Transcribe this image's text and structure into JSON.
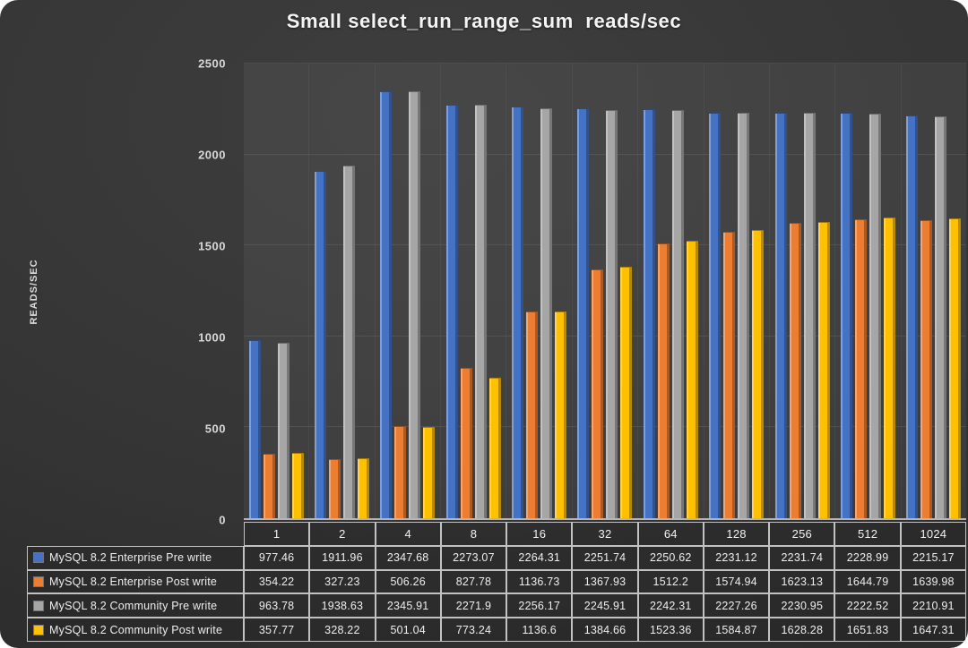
{
  "chart_data": {
    "type": "bar",
    "title": "Small select_run_range_sum  reads/sec",
    "xlabel": "",
    "ylabel": "READS/SEC",
    "ylim": [
      0,
      2500
    ],
    "yticks": [
      0,
      500,
      1000,
      1500,
      2000,
      2500
    ],
    "grid": true,
    "legend_position": "table-left",
    "categories": [
      "1",
      "2",
      "4",
      "8",
      "16",
      "32",
      "64",
      "128",
      "256",
      "512",
      "1024"
    ],
    "series": [
      {
        "name": "MySQL 8.2 Enterprise Pre write",
        "color": "#4472c4",
        "values": [
          977.46,
          1911.96,
          2347.68,
          2273.07,
          2264.31,
          2251.74,
          2250.62,
          2231.12,
          2231.74,
          2228.99,
          2215.17
        ]
      },
      {
        "name": "MySQL 8.2 Enterprise Post write",
        "color": "#ed7d31",
        "values": [
          354.22,
          327.23,
          506.26,
          827.78,
          1136.73,
          1367.93,
          1512.2,
          1574.94,
          1623.13,
          1644.79,
          1639.98
        ]
      },
      {
        "name": "MySQL 8.2 Community Pre write",
        "color": "#a6a6a6",
        "values": [
          963.78,
          1938.63,
          2345.91,
          2271.9,
          2256.17,
          2245.91,
          2242.31,
          2227.26,
          2230.95,
          2222.52,
          2210.91
        ]
      },
      {
        "name": "MySQL 8.2 Community Post write",
        "color": "#ffc000",
        "values": [
          357.77,
          328.22,
          501.04,
          773.24,
          1136.6,
          1384.66,
          1523.36,
          1584.87,
          1628.28,
          1651.83,
          1647.31
        ]
      }
    ]
  },
  "colors": {
    "background_dark": "#333333",
    "axis_line": "#b5b5b5",
    "table_border": "#c2c2c2",
    "text_light": "#eeeeee"
  }
}
